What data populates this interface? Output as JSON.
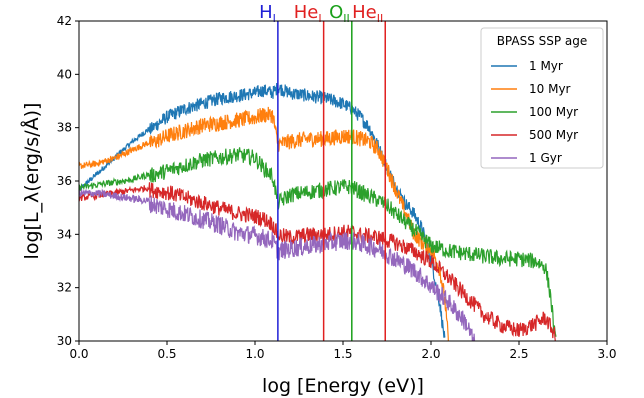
{
  "chart_data": {
    "type": "line",
    "xlabel": "log  [Energy (eV)]",
    "ylabel": "log[L_λ(erg/s/Å)]",
    "xlim": [
      0.0,
      3.0
    ],
    "ylim": [
      30,
      42
    ],
    "x_ticks": [
      "0.0",
      "0.5",
      "1.0",
      "1.5",
      "2.0",
      "2.5",
      "3.0"
    ],
    "y_ticks": [
      "30",
      "32",
      "34",
      "36",
      "38",
      "40",
      "42"
    ],
    "grid": false,
    "legend": {
      "title": "BPASS SSP age",
      "placement": "top-right"
    },
    "vertical_lines": [
      {
        "x": 1.13,
        "label": "H",
        "sub": "I",
        "color": "#1f1fd6"
      },
      {
        "x": 1.39,
        "label": "He",
        "sub": "I",
        "color": "#e02020"
      },
      {
        "x": 1.55,
        "label": "O",
        "sub": "II",
        "color": "#1aa01a"
      },
      {
        "x": 1.74,
        "label": "He",
        "sub": "II",
        "color": "#e02020"
      }
    ],
    "series": [
      {
        "name": "1 Myr",
        "color": "#1f77b4",
        "points": [
          [
            0.0,
            35.7
          ],
          [
            0.1,
            36.3
          ],
          [
            0.2,
            36.9
          ],
          [
            0.3,
            37.5
          ],
          [
            0.4,
            38.0
          ],
          [
            0.5,
            38.5
          ],
          [
            0.6,
            38.8
          ],
          [
            0.7,
            39.0
          ],
          [
            0.8,
            39.2
          ],
          [
            0.9,
            39.3
          ],
          [
            1.0,
            39.4
          ],
          [
            1.05,
            39.5
          ],
          [
            1.1,
            39.4
          ],
          [
            1.13,
            39.6
          ],
          [
            1.2,
            39.4
          ],
          [
            1.3,
            39.3
          ],
          [
            1.4,
            39.2
          ],
          [
            1.5,
            39.0
          ],
          [
            1.55,
            38.8
          ],
          [
            1.6,
            38.5
          ],
          [
            1.65,
            38.1
          ],
          [
            1.7,
            37.4
          ],
          [
            1.75,
            36.6
          ],
          [
            1.8,
            35.9
          ],
          [
            1.85,
            35.3
          ],
          [
            1.9,
            34.9
          ],
          [
            1.95,
            34.3
          ],
          [
            2.0,
            33.2
          ],
          [
            2.05,
            31.5
          ],
          [
            2.08,
            30.0
          ]
        ],
        "noise": 0.25
      },
      {
        "name": "10 Myr",
        "color": "#ff7f0e",
        "points": [
          [
            0.0,
            36.6
          ],
          [
            0.1,
            36.7
          ],
          [
            0.2,
            36.9
          ],
          [
            0.3,
            37.2
          ],
          [
            0.4,
            37.5
          ],
          [
            0.5,
            37.8
          ],
          [
            0.6,
            38.0
          ],
          [
            0.7,
            38.2
          ],
          [
            0.8,
            38.3
          ],
          [
            0.9,
            38.4
          ],
          [
            1.0,
            38.5
          ],
          [
            1.05,
            38.6
          ],
          [
            1.1,
            38.6
          ],
          [
            1.13,
            37.5
          ],
          [
            1.2,
            37.6
          ],
          [
            1.3,
            37.7
          ],
          [
            1.4,
            37.7
          ],
          [
            1.5,
            37.8
          ],
          [
            1.55,
            37.8
          ],
          [
            1.6,
            37.7
          ],
          [
            1.65,
            37.6
          ],
          [
            1.7,
            37.3
          ],
          [
            1.75,
            36.6
          ],
          [
            1.8,
            35.8
          ],
          [
            1.85,
            35.0
          ],
          [
            1.9,
            34.2
          ],
          [
            1.95,
            33.8
          ],
          [
            2.0,
            33.6
          ],
          [
            2.05,
            32.8
          ],
          [
            2.08,
            31.6
          ],
          [
            2.1,
            30.0
          ]
        ],
        "noise": 0.3
      },
      {
        "name": "100 Myr",
        "color": "#2ca02c",
        "points": [
          [
            0.0,
            35.8
          ],
          [
            0.1,
            35.9
          ],
          [
            0.2,
            36.0
          ],
          [
            0.3,
            36.1
          ],
          [
            0.4,
            36.3
          ],
          [
            0.5,
            36.5
          ],
          [
            0.6,
            36.7
          ],
          [
            0.7,
            36.9
          ],
          [
            0.8,
            37.0
          ],
          [
            0.9,
            37.1
          ],
          [
            1.0,
            37.0
          ],
          [
            1.05,
            36.6
          ],
          [
            1.1,
            36.3
          ],
          [
            1.13,
            35.3
          ],
          [
            1.2,
            35.6
          ],
          [
            1.3,
            35.7
          ],
          [
            1.4,
            35.8
          ],
          [
            1.5,
            35.9
          ],
          [
            1.55,
            35.9
          ],
          [
            1.6,
            35.7
          ],
          [
            1.7,
            35.4
          ],
          [
            1.75,
            35.2
          ],
          [
            1.8,
            34.9
          ],
          [
            1.85,
            34.6
          ],
          [
            1.9,
            34.3
          ],
          [
            2.0,
            33.7
          ],
          [
            2.1,
            33.5
          ],
          [
            2.2,
            33.4
          ],
          [
            2.3,
            33.3
          ],
          [
            2.4,
            33.2
          ],
          [
            2.5,
            33.2
          ],
          [
            2.6,
            33.1
          ],
          [
            2.65,
            32.9
          ],
          [
            2.68,
            31.8
          ],
          [
            2.7,
            30.5
          ],
          [
            2.71,
            30.0
          ]
        ],
        "noise": 0.3
      },
      {
        "name": "500 Myr",
        "color": "#d62728",
        "points": [
          [
            0.0,
            35.4
          ],
          [
            0.1,
            35.5
          ],
          [
            0.2,
            35.6
          ],
          [
            0.3,
            35.7
          ],
          [
            0.4,
            35.8
          ],
          [
            0.5,
            35.7
          ],
          [
            0.6,
            35.5
          ],
          [
            0.7,
            35.3
          ],
          [
            0.8,
            35.1
          ],
          [
            0.9,
            34.9
          ],
          [
            1.0,
            34.8
          ],
          [
            1.05,
            34.7
          ],
          [
            1.1,
            34.5
          ],
          [
            1.13,
            34.1
          ],
          [
            1.2,
            34.0
          ],
          [
            1.3,
            34.1
          ],
          [
            1.4,
            34.1
          ],
          [
            1.5,
            34.2
          ],
          [
            1.55,
            34.2
          ],
          [
            1.6,
            34.1
          ],
          [
            1.7,
            34.0
          ],
          [
            1.8,
            33.8
          ],
          [
            1.9,
            33.5
          ],
          [
            2.0,
            33.1
          ],
          [
            2.1,
            32.5
          ],
          [
            2.2,
            31.8
          ],
          [
            2.3,
            31.1
          ],
          [
            2.4,
            30.7
          ],
          [
            2.5,
            30.5
          ],
          [
            2.6,
            30.8
          ],
          [
            2.65,
            31.0
          ],
          [
            2.7,
            30.4
          ],
          [
            2.71,
            30.0
          ]
        ],
        "noise": 0.3
      },
      {
        "name": "1 Gyr",
        "color": "#9467bd",
        "points": [
          [
            0.0,
            35.6
          ],
          [
            0.1,
            35.6
          ],
          [
            0.2,
            35.5
          ],
          [
            0.3,
            35.4
          ],
          [
            0.4,
            35.3
          ],
          [
            0.5,
            35.1
          ],
          [
            0.6,
            34.9
          ],
          [
            0.7,
            34.7
          ],
          [
            0.8,
            34.5
          ],
          [
            0.9,
            34.2
          ],
          [
            1.0,
            34.1
          ],
          [
            1.05,
            34.0
          ],
          [
            1.1,
            33.9
          ],
          [
            1.13,
            33.5
          ],
          [
            1.2,
            33.6
          ],
          [
            1.3,
            33.7
          ],
          [
            1.4,
            33.8
          ],
          [
            1.5,
            33.9
          ],
          [
            1.55,
            33.9
          ],
          [
            1.6,
            33.8
          ],
          [
            1.7,
            33.6
          ],
          [
            1.8,
            33.2
          ],
          [
            1.9,
            32.8
          ],
          [
            2.0,
            32.2
          ],
          [
            2.1,
            31.6
          ],
          [
            2.2,
            30.8
          ],
          [
            2.25,
            30.0
          ]
        ],
        "noise": 0.35
      }
    ]
  }
}
